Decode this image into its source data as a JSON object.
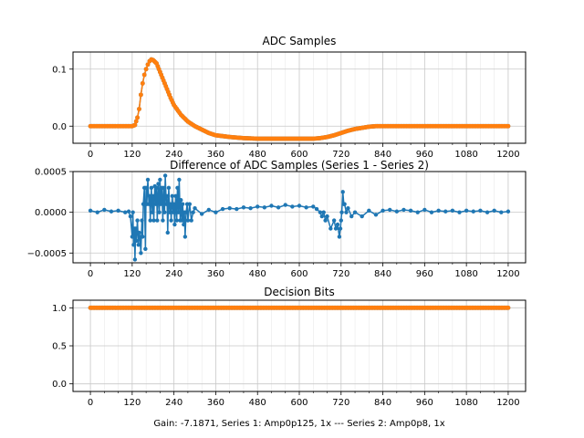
{
  "chart_data": [
    {
      "type": "scatter",
      "title": "ADC Samples",
      "xlim": [
        -50,
        1250
      ],
      "ylim": [
        -0.03,
        0.13
      ],
      "xticks": [
        0,
        120,
        240,
        360,
        480,
        600,
        720,
        840,
        960,
        1080,
        1200
      ],
      "yticks": [
        0.0,
        0.1
      ],
      "ytick_labels": [
        "0.0",
        "0.1"
      ],
      "grid": true,
      "series": [
        {
          "color": "#1f77b4",
          "marker": "o",
          "linestyle": "solid",
          "shape": "pulse_then_undershoot",
          "points": [
            [
              0,
              0
            ],
            [
              100,
              0
            ],
            [
              120,
              0
            ],
            [
              128,
              0.002
            ],
            [
              135,
              0.015
            ],
            [
              140,
              0.03
            ],
            [
              145,
              0.055
            ],
            [
              150,
              0.075
            ],
            [
              155,
              0.09
            ],
            [
              160,
              0.1
            ],
            [
              165,
              0.108
            ],
            [
              170,
              0.114
            ],
            [
              175,
              0.117
            ],
            [
              180,
              0.116
            ],
            [
              190,
              0.11
            ],
            [
              200,
              0.095
            ],
            [
              210,
              0.08
            ],
            [
              220,
              0.065
            ],
            [
              230,
              0.05
            ],
            [
              240,
              0.037
            ],
            [
              260,
              0.02
            ],
            [
              280,
              0.008
            ],
            [
              300,
              0.0
            ],
            [
              320,
              -0.006
            ],
            [
              340,
              -0.012
            ],
            [
              360,
              -0.016
            ],
            [
              400,
              -0.019
            ],
            [
              440,
              -0.021
            ],
            [
              480,
              -0.022
            ],
            [
              520,
              -0.022
            ],
            [
              560,
              -0.022
            ],
            [
              600,
              -0.022
            ],
            [
              640,
              -0.022
            ],
            [
              660,
              -0.021
            ],
            [
              680,
              -0.019
            ],
            [
              700,
              -0.016
            ],
            [
              720,
              -0.012
            ],
            [
              740,
              -0.008
            ],
            [
              760,
              -0.005
            ],
            [
              780,
              -0.003
            ],
            [
              800,
              -0.001
            ],
            [
              820,
              0.0
            ],
            [
              840,
              0.0
            ],
            [
              1200,
              0.0
            ]
          ]
        },
        {
          "color": "#ff7f0e",
          "marker": "o",
          "linestyle": "solid",
          "shape": "pulse_then_undershoot",
          "points": [
            [
              0,
              0
            ],
            [
              100,
              0
            ],
            [
              120,
              0
            ],
            [
              128,
              0.002
            ],
            [
              135,
              0.015
            ],
            [
              140,
              0.03
            ],
            [
              145,
              0.055
            ],
            [
              150,
              0.075
            ],
            [
              155,
              0.09
            ],
            [
              160,
              0.1
            ],
            [
              165,
              0.108
            ],
            [
              170,
              0.114
            ],
            [
              175,
              0.117
            ],
            [
              180,
              0.116
            ],
            [
              190,
              0.11
            ],
            [
              200,
              0.095
            ],
            [
              210,
              0.08
            ],
            [
              220,
              0.065
            ],
            [
              230,
              0.05
            ],
            [
              240,
              0.037
            ],
            [
              260,
              0.02
            ],
            [
              280,
              0.008
            ],
            [
              300,
              0.0
            ],
            [
              320,
              -0.006
            ],
            [
              340,
              -0.012
            ],
            [
              360,
              -0.016
            ],
            [
              400,
              -0.019
            ],
            [
              440,
              -0.021
            ],
            [
              480,
              -0.022
            ],
            [
              520,
              -0.022
            ],
            [
              560,
              -0.022
            ],
            [
              600,
              -0.022
            ],
            [
              640,
              -0.022
            ],
            [
              660,
              -0.021
            ],
            [
              680,
              -0.019
            ],
            [
              700,
              -0.016
            ],
            [
              720,
              -0.012
            ],
            [
              740,
              -0.008
            ],
            [
              760,
              -0.005
            ],
            [
              780,
              -0.003
            ],
            [
              800,
              -0.001
            ],
            [
              820,
              0.0
            ],
            [
              840,
              0.0
            ],
            [
              1200,
              0.0
            ]
          ]
        }
      ]
    },
    {
      "type": "scatter",
      "title": "Difference of ADC Samples (Series 1 - Series 2)",
      "xlim": [
        -50,
        1250
      ],
      "ylim": [
        -0.00062,
        0.0005
      ],
      "xticks": [
        0,
        120,
        240,
        360,
        480,
        600,
        720,
        840,
        960,
        1080,
        1200
      ],
      "yticks": [
        -0.0005,
        0.0,
        0.0005
      ],
      "ytick_labels": [
        "−0.0005",
        "0.0000",
        "0.0005"
      ],
      "grid": true,
      "series": [
        {
          "color": "#1f77b4",
          "marker": "o",
          "linestyle": "solid",
          "points": [
            [
              0,
              2e-05
            ],
            [
              20,
              0.0
            ],
            [
              40,
              3e-05
            ],
            [
              60,
              1e-05
            ],
            [
              80,
              2e-05
            ],
            [
              100,
              0.0
            ],
            [
              110,
              1e-05
            ],
            [
              115,
              -5e-05
            ],
            [
              120,
              -0.0003
            ],
            [
              122,
              0.0
            ],
            [
              124,
              -0.0004
            ],
            [
              126,
              -0.0002
            ],
            [
              128,
              -0.00058
            ],
            [
              130,
              -0.0002
            ],
            [
              132,
              -0.00035
            ],
            [
              135,
              -0.0001
            ],
            [
              138,
              -0.0004
            ],
            [
              140,
              -0.00025
            ],
            [
              142,
              -0.0003
            ],
            [
              145,
              -0.0005
            ],
            [
              148,
              -0.0001
            ],
            [
              150,
              -0.0003
            ],
            [
              152,
              0.0001
            ],
            [
              155,
              0.0003
            ],
            [
              158,
              -0.00045
            ],
            [
              160,
              0.0003
            ],
            [
              162,
              0.0001
            ],
            [
              165,
              0.0004
            ],
            [
              168,
              0.0001
            ],
            [
              170,
              0.0002
            ],
            [
              172,
              -0.0001
            ],
            [
              175,
              0.0003
            ],
            [
              178,
              0.0
            ],
            [
              180,
              0.0002
            ],
            [
              182,
              -0.0001
            ],
            [
              185,
              0.00032
            ],
            [
              188,
              0.0001
            ],
            [
              190,
              0.0003
            ],
            [
              192,
              -0.0001
            ],
            [
              195,
              0.00035
            ],
            [
              198,
              0.0
            ],
            [
              200,
              0.0004
            ],
            [
              202,
              0.0001
            ],
            [
              205,
              0.0003
            ],
            [
              208,
              -0.0001
            ],
            [
              210,
              0.0003
            ],
            [
              213,
              0.0
            ],
            [
              215,
              0.00045
            ],
            [
              218,
              0.0001
            ],
            [
              220,
              0.0002
            ],
            [
              222,
              -0.00025
            ],
            [
              225,
              0.0003
            ],
            [
              228,
              0.0
            ],
            [
              230,
              0.0001
            ],
            [
              232,
              -0.0001
            ],
            [
              235,
              0.0002
            ],
            [
              238,
              0.0
            ],
            [
              240,
              0.0001
            ],
            [
              242,
              -0.00015
            ],
            [
              245,
              0.0002
            ],
            [
              248,
              -0.0001
            ],
            [
              250,
              0.0003
            ],
            [
              253,
              0.0
            ],
            [
              255,
              0.0004
            ],
            [
              258,
              -0.0001
            ],
            [
              260,
              0.00015
            ],
            [
              263,
              -0.0001
            ],
            [
              265,
              0.0001
            ],
            [
              268,
              -0.00015
            ],
            [
              270,
              0.0
            ],
            [
              272,
              -0.0003
            ],
            [
              275,
              0.0
            ],
            [
              278,
              0.0001
            ],
            [
              280,
              -0.0001
            ],
            [
              285,
              0.0001
            ],
            [
              290,
              -0.0001
            ],
            [
              295,
              0.0
            ],
            [
              300,
              5e-05
            ],
            [
              320,
              -2e-05
            ],
            [
              340,
              3e-05
            ],
            [
              360,
              0.0
            ],
            [
              380,
              4e-05
            ],
            [
              400,
              5e-05
            ],
            [
              420,
              4e-05
            ],
            [
              440,
              6e-05
            ],
            [
              460,
              5e-05
            ],
            [
              480,
              7e-05
            ],
            [
              500,
              6e-05
            ],
            [
              520,
              8e-05
            ],
            [
              540,
              6e-05
            ],
            [
              560,
              9e-05
            ],
            [
              580,
              7e-05
            ],
            [
              600,
              8e-05
            ],
            [
              620,
              6e-05
            ],
            [
              640,
              7e-05
            ],
            [
              650,
              4e-05
            ],
            [
              660,
              0.0
            ],
            [
              665,
              -5e-05
            ],
            [
              670,
              0.0
            ],
            [
              675,
              -0.0001
            ],
            [
              680,
              -5e-05
            ],
            [
              690,
              -0.0002
            ],
            [
              700,
              -0.0001
            ],
            [
              705,
              -0.0002
            ],
            [
              710,
              -0.00015
            ],
            [
              715,
              -0.0003
            ],
            [
              718,
              -0.0002
            ],
            [
              720,
              -0.0001
            ],
            [
              722,
              0.0
            ],
            [
              725,
              0.00025
            ],
            [
              728,
              0.0001
            ],
            [
              730,
              0.0001
            ],
            [
              735,
              0.0
            ],
            [
              740,
              5e-05
            ],
            [
              750,
              -5e-05
            ],
            [
              760,
              0.0
            ],
            [
              780,
              -5e-05
            ],
            [
              800,
              2e-05
            ],
            [
              820,
              -3e-05
            ],
            [
              840,
              2e-05
            ],
            [
              860,
              3e-05
            ],
            [
              880,
              1e-05
            ],
            [
              900,
              3e-05
            ],
            [
              920,
              2e-05
            ],
            [
              940,
              0.0
            ],
            [
              960,
              3e-05
            ],
            [
              980,
              0.0
            ],
            [
              1000,
              2e-05
            ],
            [
              1020,
              1e-05
            ],
            [
              1040,
              2e-05
            ],
            [
              1060,
              0.0
            ],
            [
              1080,
              2e-05
            ],
            [
              1100,
              1e-05
            ],
            [
              1120,
              2e-05
            ],
            [
              1140,
              0.0
            ],
            [
              1160,
              2e-05
            ],
            [
              1180,
              0.0
            ],
            [
              1200,
              1e-05
            ]
          ]
        }
      ]
    },
    {
      "type": "scatter",
      "title": "Decision Bits",
      "xlim": [
        -50,
        1250
      ],
      "ylim": [
        -0.1,
        1.1
      ],
      "xticks": [
        0,
        120,
        240,
        360,
        480,
        600,
        720,
        840,
        960,
        1080,
        1200
      ],
      "yticks": [
        0.0,
        0.5,
        1.0
      ],
      "ytick_labels": [
        "0.0",
        "0.5",
        "1.0"
      ],
      "grid": true,
      "series": [
        {
          "color": "#1f77b4",
          "marker": "o",
          "linestyle": "solid",
          "points": [
            [
              0,
              1
            ],
            [
              1200,
              1
            ]
          ]
        },
        {
          "color": "#ff7f0e",
          "marker": "o",
          "linestyle": "solid",
          "points": [
            [
              0,
              1
            ],
            [
              1200,
              1
            ]
          ]
        }
      ],
      "xlabel": "Gain: -7.1871, Series 1: Amp0p125, 1x --- Series 2: Amp0p8, 1x"
    }
  ]
}
